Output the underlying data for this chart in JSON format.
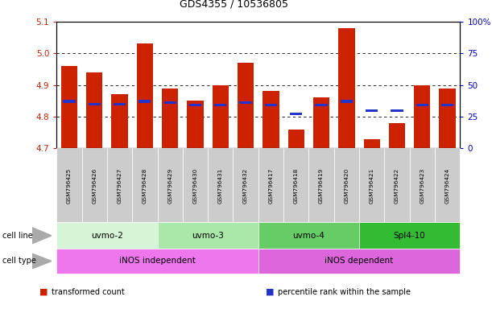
{
  "title": "GDS4355 / 10536805",
  "samples": [
    "GSM796425",
    "GSM796426",
    "GSM796427",
    "GSM796428",
    "GSM796429",
    "GSM796430",
    "GSM796431",
    "GSM796432",
    "GSM796417",
    "GSM796418",
    "GSM796419",
    "GSM796420",
    "GSM796421",
    "GSM796422",
    "GSM796423",
    "GSM796424"
  ],
  "transformed_count": [
    4.96,
    4.94,
    4.87,
    5.03,
    4.89,
    4.85,
    4.9,
    4.97,
    4.88,
    4.76,
    4.86,
    5.08,
    4.73,
    4.78,
    4.9,
    4.89
  ],
  "percentile_rank_pct": [
    37,
    35,
    35,
    37,
    36,
    34,
    34,
    36,
    34,
    27,
    34,
    37,
    30,
    30,
    34,
    34
  ],
  "bar_bottom": 4.7,
  "ylim_left": [
    4.7,
    5.1
  ],
  "ylim_right": [
    0,
    100
  ],
  "yticks_left": [
    4.7,
    4.8,
    4.9,
    5.0,
    5.1
  ],
  "yticks_right": [
    0,
    25,
    50,
    75,
    100
  ],
  "cell_line_groups": [
    {
      "label": "uvmo-2",
      "start": 0,
      "end": 3,
      "color": "#d6f5d6"
    },
    {
      "label": "uvmo-3",
      "start": 4,
      "end": 7,
      "color": "#aae8aa"
    },
    {
      "label": "uvmo-4",
      "start": 8,
      "end": 11,
      "color": "#66cc66"
    },
    {
      "label": "Spl4-10",
      "start": 12,
      "end": 15,
      "color": "#33bb33"
    }
  ],
  "cell_type_groups": [
    {
      "label": "iNOS independent",
      "start": 0,
      "end": 7,
      "color": "#ee77ee"
    },
    {
      "label": "iNOS dependent",
      "start": 8,
      "end": 15,
      "color": "#dd66dd"
    }
  ],
  "bar_color": "#cc2200",
  "blue_color": "#2233cc",
  "tick_label_color_left": "#cc2200",
  "tick_label_color_right": "#0000cc",
  "bar_width": 0.65,
  "sample_box_color": "#cccccc",
  "legend_items": [
    {
      "label": "transformed count",
      "color": "#cc2200"
    },
    {
      "label": "percentile rank within the sample",
      "color": "#2233cc"
    }
  ]
}
